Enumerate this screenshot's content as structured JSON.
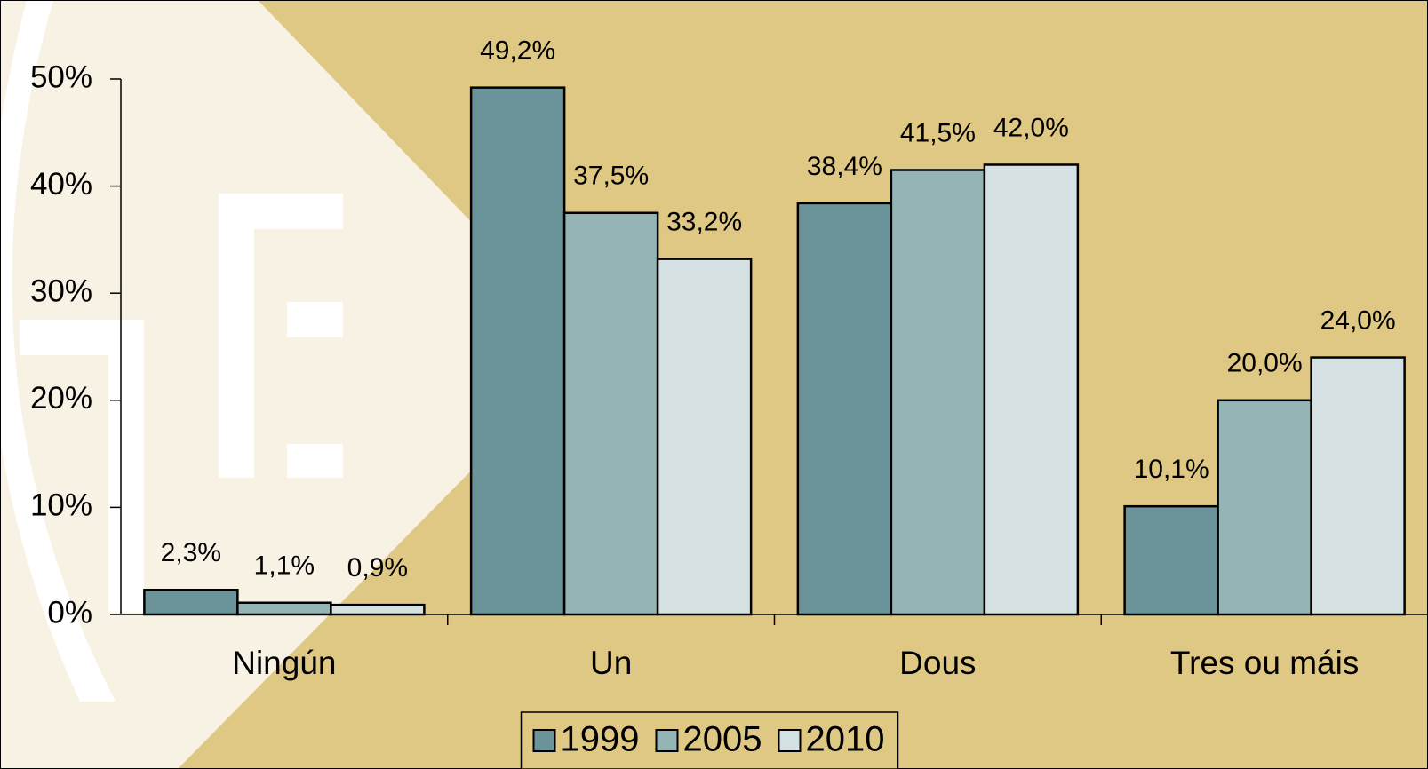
{
  "chart_data": {
    "type": "bar",
    "categories": [
      "Ningún",
      "Un",
      "Dous",
      "Tres ou máis"
    ],
    "series": [
      {
        "name": "1999",
        "color": "#6a9499",
        "values": [
          2.3,
          49.2,
          38.4,
          10.1
        ],
        "value_labels": [
          "2,3%",
          "49,2%",
          "38,4%",
          "10,1%"
        ]
      },
      {
        "name": "2005",
        "color": "#94b4b6",
        "values": [
          1.1,
          37.5,
          41.5,
          20.0
        ],
        "value_labels": [
          "1,1%",
          "37,5%",
          "41,5%",
          "20,0%"
        ]
      },
      {
        "name": "2010",
        "color": "#d4e0e2",
        "values": [
          0.9,
          33.2,
          42.0,
          24.0
        ],
        "value_labels": [
          "0,9%",
          "33,2%",
          "42,0%",
          "24,0%"
        ]
      }
    ],
    "ylim": [
      0,
      50
    ],
    "yticks": [
      {
        "value": 0,
        "label": "0%"
      },
      {
        "value": 10,
        "label": "10%"
      },
      {
        "value": 20,
        "label": "20%"
      },
      {
        "value": 30,
        "label": "30%"
      },
      {
        "value": 40,
        "label": "40%"
      },
      {
        "value": 50,
        "label": "50%"
      }
    ],
    "legend": "bottom"
  }
}
